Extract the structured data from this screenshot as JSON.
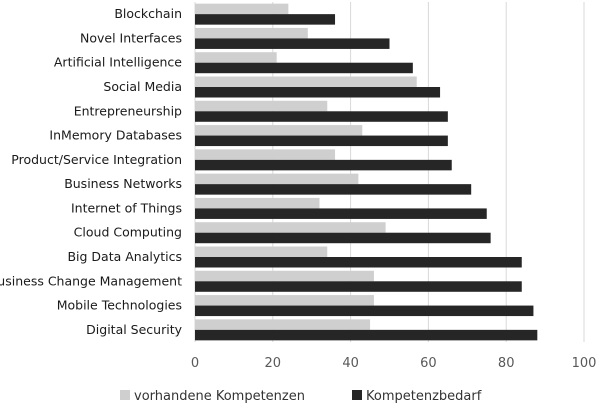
{
  "chart_data": {
    "type": "bar",
    "orientation": "horizontal",
    "categories": [
      "Blockchain",
      "Novel Interfaces",
      "Artificial Intelligence",
      "Social Media",
      "Entrepreneurship",
      "InMemory Databases",
      "Product/Service Integration",
      "Business Networks",
      "Internet of Things",
      "Cloud Computing",
      "Big Data Analytics",
      "Business Change Management",
      "Mobile Technologies",
      "Digital Security"
    ],
    "series": [
      {
        "name": "vorhandene Kompetenzen",
        "color": "#cfcfcf",
        "values": [
          24,
          29,
          21,
          57,
          34,
          43,
          36,
          42,
          32,
          49,
          34,
          46,
          46,
          45
        ]
      },
      {
        "name": "Kompetenzbedarf",
        "color": "#262626",
        "values": [
          36,
          50,
          56,
          63,
          65,
          65,
          66,
          71,
          75,
          76,
          84,
          84,
          87,
          88
        ]
      }
    ],
    "xlim": [
      0,
      100
    ],
    "xticks": [
      0,
      20,
      40,
      60,
      80,
      100
    ],
    "grid": "vertical",
    "legend_position": "bottom"
  }
}
